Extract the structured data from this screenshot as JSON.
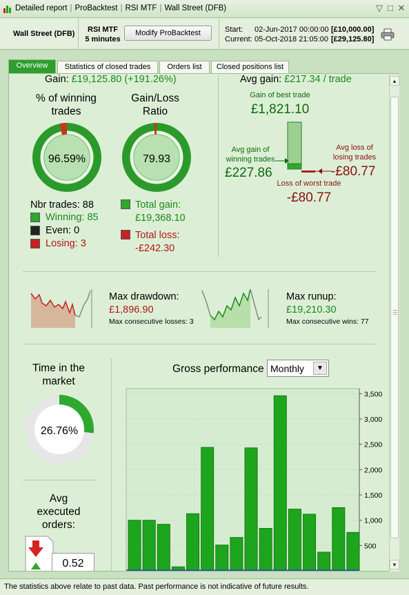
{
  "titlebar": {
    "items": [
      "Detailed report",
      "ProBacktest",
      "RSI MTF",
      "Wall Street (DFB)"
    ],
    "minimize": "▽",
    "restore": "□",
    "close": "✕"
  },
  "header": {
    "instrument": "Wall Street (DFB)",
    "strategy": "RSI MTF",
    "timeframe": "5 minutes",
    "modify_label": "Modify ProBacktest",
    "start_label": "Start:",
    "start_date": "02-Jun-2017 00:00:00",
    "start_amount": "[£10,000.00]",
    "current_label": "Current:",
    "current_date": "05-Oct-2018 21:05:00",
    "current_amount": "[£29,125.80]"
  },
  "tabs": [
    {
      "label": "Overview",
      "active": true
    },
    {
      "label": "Statistics of closed trades",
      "active": false
    },
    {
      "label": "Orders list",
      "active": false
    },
    {
      "label": "Closed positions list",
      "active": false
    }
  ],
  "summary": {
    "gain_label": "Gain:",
    "gain_value": "£19,125.80 (+191.26%)",
    "avg_gain_label": "Avg gain:",
    "avg_gain_value": "£217.34 / trade"
  },
  "winning": {
    "title1": "% of winning",
    "title2": "trades",
    "percent_text": "96.59%",
    "fraction": 0.9659
  },
  "gainloss": {
    "title1": "Gain/Loss",
    "title2": "Ratio",
    "value": "79.93",
    "fraction": 0.9876
  },
  "trades": {
    "nbr_label": "Nbr trades: 88",
    "winning_label": "Winning: 85",
    "even_label": "Even: 0",
    "losing_label": "Losing: 3",
    "total_gain_label": "Total gain:",
    "total_gain_value": "£19,368.10",
    "total_loss_label": "Total loss:",
    "total_loss_value": "-£242.30"
  },
  "best_trade": {
    "best_label": "Gain of best trade",
    "best_value": "£1,821.10",
    "avg_win_label1": "Avg gain of",
    "avg_win_label2": "winning trades",
    "avg_win_value": "£227.86",
    "avg_loss_label1": "Avg loss of",
    "avg_loss_label2": "losing trades",
    "avg_loss_value": "-£80.77",
    "worst_label": "Loss of worst trade",
    "worst_value": "-£80.77"
  },
  "drawdown": {
    "title": "Max drawdown:",
    "value": "£1,896.90",
    "sub": "Max consecutive losses: 3"
  },
  "runup": {
    "title": "Max runup:",
    "value": "£19,210.30",
    "sub": "Max consecutive wins: 77"
  },
  "market_time": {
    "title1": "Time in the",
    "title2": "market",
    "value_text": "26.76%",
    "fraction": 0.2676
  },
  "orders": {
    "title1": "Avg",
    "title2": "executed",
    "title3": "orders:",
    "value": "0.52"
  },
  "gross": {
    "title": "Gross performance",
    "period": "Monthly",
    "dropdown_arrow": "▼"
  },
  "chart_data": {
    "type": "bar",
    "title": "Gross performance",
    "values": [
      1000,
      1000,
      920,
      80,
      1130,
      2440,
      510,
      660,
      2430,
      840,
      3460,
      1220,
      1120,
      370,
      1250,
      760
    ],
    "ylim": [
      0,
      3500
    ],
    "yticks": [
      "3,500",
      "3,000",
      "2,500",
      "2,000",
      "1,500",
      "1,000",
      "500"
    ],
    "grid": true,
    "color": "#1ea51e"
  },
  "footer": {
    "text": "The statistics above relate to past data. Past performance is not indicative of future results."
  },
  "colors": {
    "accent": "#2e9e2e",
    "gain": "#1a8a1a",
    "loss": "#b31616",
    "background": "#dcefd6"
  }
}
